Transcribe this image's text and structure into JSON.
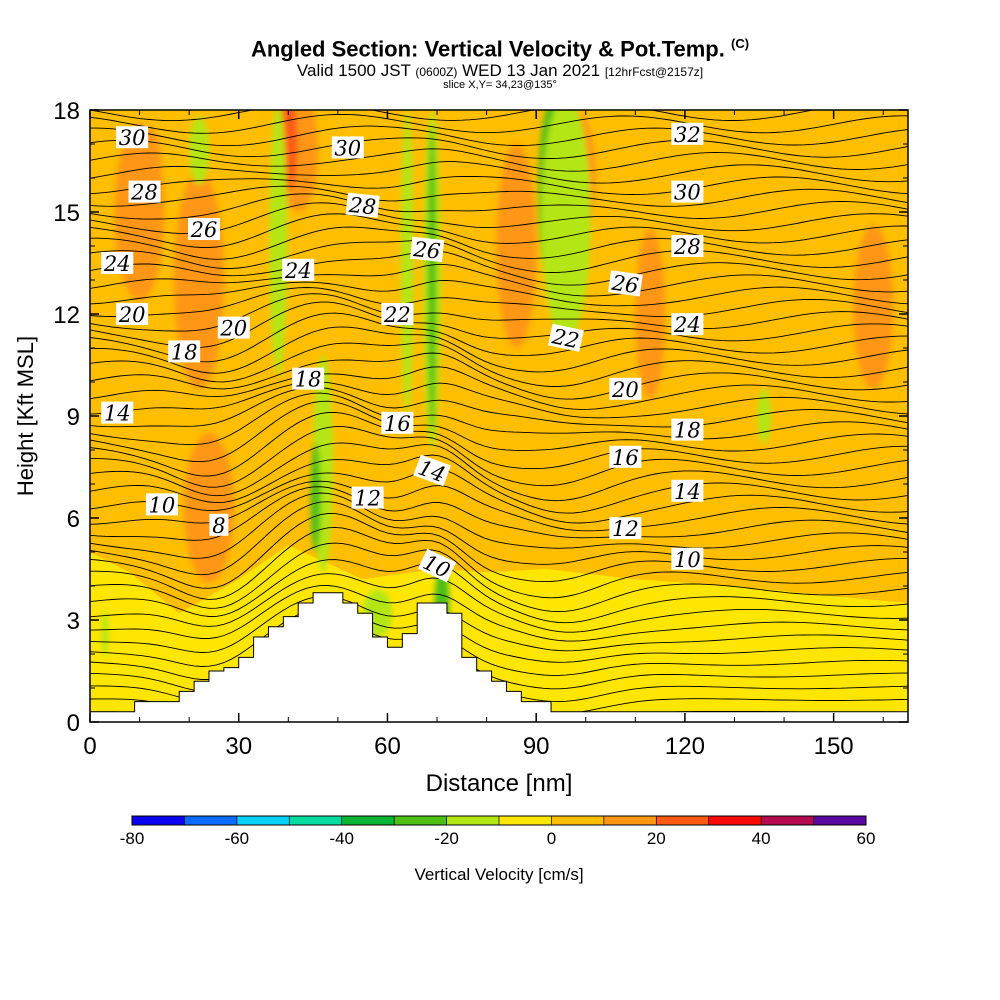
{
  "header": {
    "title_main": "Angled Section: Vertical Velocity & Pot.Temp.",
    "title_units": "(C)",
    "valid_prefix": "Valid 1500 JST",
    "valid_utc": "(0600Z)",
    "valid_date": "WED 13 Jan 2021",
    "forecast": "[12hrFcst@2157z]",
    "slice": "slice X,Y= 34,23@135°"
  },
  "chart_data": {
    "type": "heatmap",
    "title": "Angled Section: Vertical Velocity & Pot.Temp. (C)",
    "xlabel": "Distance [nm]",
    "ylabel": "Height [Kft MSL]",
    "xlim": [
      0,
      165
    ],
    "ylim": [
      0,
      18
    ],
    "x_ticks": [
      0,
      30,
      60,
      90,
      120,
      150
    ],
    "y_ticks": [
      0,
      3,
      6,
      9,
      12,
      15,
      18
    ],
    "colorbar": {
      "label": "Vertical Velocity [cm/s]",
      "ticks": [
        -80,
        -60,
        -40,
        -20,
        0,
        20,
        40,
        60
      ],
      "levels": [
        -80,
        -70,
        -60,
        -50,
        -40,
        -30,
        -20,
        -10,
        0,
        10,
        20,
        30,
        40,
        50,
        60
      ],
      "colors": [
        "#0a00f0",
        "#0a6cff",
        "#00d2ff",
        "#00dca0",
        "#0ab432",
        "#4cbe14",
        "#b4e614",
        "#ffe600",
        "#ffbe00",
        "#ff9614",
        "#ff5a14",
        "#ff0a00",
        "#b40a50",
        "#5a0aa0"
      ]
    },
    "background_level": "#ffbe00",
    "velocity_patches": [
      {
        "x": 10,
        "y": 15,
        "rx": 5,
        "ry": 2.6,
        "color": "#ff9614"
      },
      {
        "x": 22,
        "y": 13,
        "rx": 5,
        "ry": 3.2,
        "color": "#ff9614"
      },
      {
        "x": 24,
        "y": 6.3,
        "rx": 5,
        "ry": 2.2,
        "color": "#ff9614"
      },
      {
        "x": 42,
        "y": 16.8,
        "rx": 4,
        "ry": 1.8,
        "color": "#ff9614"
      },
      {
        "x": 86,
        "y": 14,
        "rx": 4,
        "ry": 3,
        "color": "#ff9614"
      },
      {
        "x": 98,
        "y": 16,
        "rx": 4,
        "ry": 2,
        "color": "#ff9614"
      },
      {
        "x": 113,
        "y": 12,
        "rx": 3,
        "ry": 2.5,
        "color": "#ff9614"
      },
      {
        "x": 158,
        "y": 12.2,
        "rx": 4,
        "ry": 2.4,
        "color": "#ff9614"
      },
      {
        "x": 40,
        "y": 17,
        "rx": 1.8,
        "ry": 1.4,
        "color": "#ff5a14"
      },
      {
        "x": 12,
        "y": 16,
        "rx": 2.5,
        "ry": 1.5,
        "color": "#ff9614"
      },
      {
        "x": 38,
        "y": 14.2,
        "rx": 1.8,
        "ry": 4,
        "color": "#b4e614"
      },
      {
        "x": 47,
        "y": 7.6,
        "rx": 2,
        "ry": 3.2,
        "color": "#b4e614"
      },
      {
        "x": 45.5,
        "y": 6.6,
        "rx": 1,
        "ry": 1.6,
        "color": "#4cbe14"
      },
      {
        "x": 64,
        "y": 13.5,
        "rx": 1.3,
        "ry": 4.5,
        "color": "#b4e614"
      },
      {
        "x": 69,
        "y": 13,
        "rx": 1.8,
        "ry": 5,
        "color": "#b4e614"
      },
      {
        "x": 69,
        "y": 13,
        "rx": 0.8,
        "ry": 4.5,
        "color": "#4cbe14"
      },
      {
        "x": 71,
        "y": 3.3,
        "rx": 1.5,
        "ry": 1.4,
        "color": "#4cbe14"
      },
      {
        "x": 93,
        "y": 15.5,
        "rx": 2.6,
        "ry": 2.7,
        "color": "#4cbe14"
      },
      {
        "x": 96,
        "y": 14.8,
        "rx": 5,
        "ry": 3.6,
        "color": "#b4e614"
      },
      {
        "x": 22,
        "y": 16.8,
        "rx": 2,
        "ry": 1,
        "color": "#b4e614"
      },
      {
        "x": 136,
        "y": 9,
        "rx": 1.4,
        "ry": 0.8,
        "color": "#b4e614"
      },
      {
        "x": 3,
        "y": 2.6,
        "rx": 0.7,
        "ry": 0.7,
        "color": "#b4e614"
      },
      {
        "x": 58,
        "y": 3.2,
        "rx": 3,
        "ry": 0.7,
        "color": "#b4e614"
      }
    ],
    "theta_labels": [
      {
        "text": "30",
        "x": 8.5,
        "y": 17.2,
        "angle": 0
      },
      {
        "text": "30",
        "x": 52,
        "y": 16.9,
        "angle": 0
      },
      {
        "text": "32",
        "x": 120.5,
        "y": 17.3,
        "angle": 0
      },
      {
        "text": "28",
        "x": 11,
        "y": 15.6,
        "angle": 0
      },
      {
        "text": "28",
        "x": 55,
        "y": 15.2,
        "angle": 6
      },
      {
        "text": "30",
        "x": 120.5,
        "y": 15.6,
        "angle": 0
      },
      {
        "text": "26",
        "x": 23,
        "y": 14.5,
        "angle": 0
      },
      {
        "text": "26",
        "x": 68,
        "y": 13.9,
        "angle": 6
      },
      {
        "text": "28",
        "x": 120.5,
        "y": 14.0,
        "angle": 0
      },
      {
        "text": "24",
        "x": 5.5,
        "y": 13.5,
        "angle": 0
      },
      {
        "text": "24",
        "x": 42,
        "y": 13.3,
        "angle": 0
      },
      {
        "text": "26",
        "x": 108,
        "y": 12.9,
        "angle": 8
      },
      {
        "text": "20",
        "x": 8.5,
        "y": 12.0,
        "angle": 0
      },
      {
        "text": "20",
        "x": 29,
        "y": 11.6,
        "angle": 0
      },
      {
        "text": "22",
        "x": 62,
        "y": 12.0,
        "angle": 0
      },
      {
        "text": "22",
        "x": 96,
        "y": 11.3,
        "angle": 12
      },
      {
        "text": "24",
        "x": 120.5,
        "y": 11.7,
        "angle": 0
      },
      {
        "text": "18",
        "x": 19,
        "y": 10.9,
        "angle": 0
      },
      {
        "text": "18",
        "x": 44,
        "y": 10.1,
        "angle": 0
      },
      {
        "text": "20",
        "x": 108,
        "y": 9.8,
        "angle": 0
      },
      {
        "text": "14",
        "x": 5.5,
        "y": 9.1,
        "angle": 0
      },
      {
        "text": "16",
        "x": 62,
        "y": 8.8,
        "angle": 0
      },
      {
        "text": "18",
        "x": 120.5,
        "y": 8.6,
        "angle": 0
      },
      {
        "text": "16",
        "x": 108,
        "y": 7.8,
        "angle": 0
      },
      {
        "text": "14",
        "x": 69,
        "y": 7.4,
        "angle": 20
      },
      {
        "text": "14",
        "x": 120.5,
        "y": 6.8,
        "angle": 0
      },
      {
        "text": "10",
        "x": 14.5,
        "y": 6.4,
        "angle": 0
      },
      {
        "text": "12",
        "x": 56,
        "y": 6.6,
        "angle": 0
      },
      {
        "text": "8",
        "x": 26,
        "y": 5.8,
        "angle": 0
      },
      {
        "text": "12",
        "x": 108,
        "y": 5.7,
        "angle": 0
      },
      {
        "text": "10",
        "x": 120.5,
        "y": 4.8,
        "angle": 0
      },
      {
        "text": "10",
        "x": 70,
        "y": 4.6,
        "angle": 25
      }
    ],
    "terrain_profile": [
      [
        0,
        0.3
      ],
      [
        9,
        0.3
      ],
      [
        9,
        0.6
      ],
      [
        18,
        0.6
      ],
      [
        18,
        0.9
      ],
      [
        21,
        0.9
      ],
      [
        21,
        1.2
      ],
      [
        24,
        1.2
      ],
      [
        24,
        1.5
      ],
      [
        27,
        1.5
      ],
      [
        27,
        1.6
      ],
      [
        30,
        1.6
      ],
      [
        30,
        1.9
      ],
      [
        33,
        1.9
      ],
      [
        33,
        2.5
      ],
      [
        36,
        2.5
      ],
      [
        36,
        2.8
      ],
      [
        39,
        2.8
      ],
      [
        39,
        3.1
      ],
      [
        42,
        3.1
      ],
      [
        42,
        3.5
      ],
      [
        45,
        3.5
      ],
      [
        45,
        3.8
      ],
      [
        51,
        3.8
      ],
      [
        51,
        3.5
      ],
      [
        54,
        3.5
      ],
      [
        54,
        3.2
      ],
      [
        57,
        3.2
      ],
      [
        57,
        2.5
      ],
      [
        60,
        2.5
      ],
      [
        60,
        2.2
      ],
      [
        63,
        2.2
      ],
      [
        63,
        2.6
      ],
      [
        66,
        2.6
      ],
      [
        66,
        3.5
      ],
      [
        72,
        3.5
      ],
      [
        72,
        3.2
      ],
      [
        75,
        3.2
      ],
      [
        75,
        1.9
      ],
      [
        78,
        1.9
      ],
      [
        78,
        1.5
      ],
      [
        81,
        1.5
      ],
      [
        81,
        1.2
      ],
      [
        84,
        1.2
      ],
      [
        84,
        0.9
      ],
      [
        87,
        0.9
      ],
      [
        87,
        0.6
      ],
      [
        93,
        0.6
      ],
      [
        93,
        0.3
      ],
      [
        165,
        0.3
      ]
    ]
  }
}
